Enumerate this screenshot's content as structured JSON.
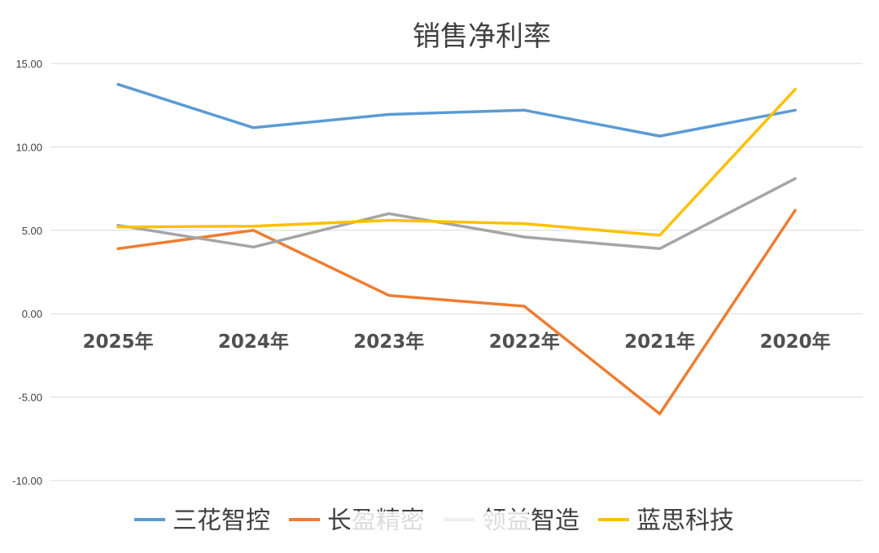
{
  "chart_data": {
    "type": "line",
    "title": "销售净利率",
    "categories": [
      "2025年",
      "2024年",
      "2023年",
      "2022年",
      "2021年",
      "2020年"
    ],
    "ylim": [
      -10,
      15
    ],
    "yticks": [
      "-10.00",
      "-5.00",
      "0.00",
      "5.00",
      "10.00",
      "15.00"
    ],
    "grid": true,
    "legend_position": "bottom",
    "series": [
      {
        "name": "三花智控",
        "color": "#5b9bd5",
        "values": [
          13.75,
          11.15,
          11.95,
          12.2,
          10.65,
          12.2
        ]
      },
      {
        "name": "长盈精密",
        "color": "#ed7d31",
        "values": [
          3.9,
          5.0,
          1.1,
          0.45,
          -6.0,
          6.2
        ]
      },
      {
        "name": "领益智造",
        "color": "#a5a5a5",
        "values": [
          5.3,
          4.0,
          6.0,
          4.6,
          3.9,
          8.1
        ]
      },
      {
        "name": "蓝思科技",
        "color": "#ffc000",
        "values": [
          5.2,
          5.25,
          5.6,
          5.4,
          4.7,
          13.45
        ]
      }
    ]
  }
}
